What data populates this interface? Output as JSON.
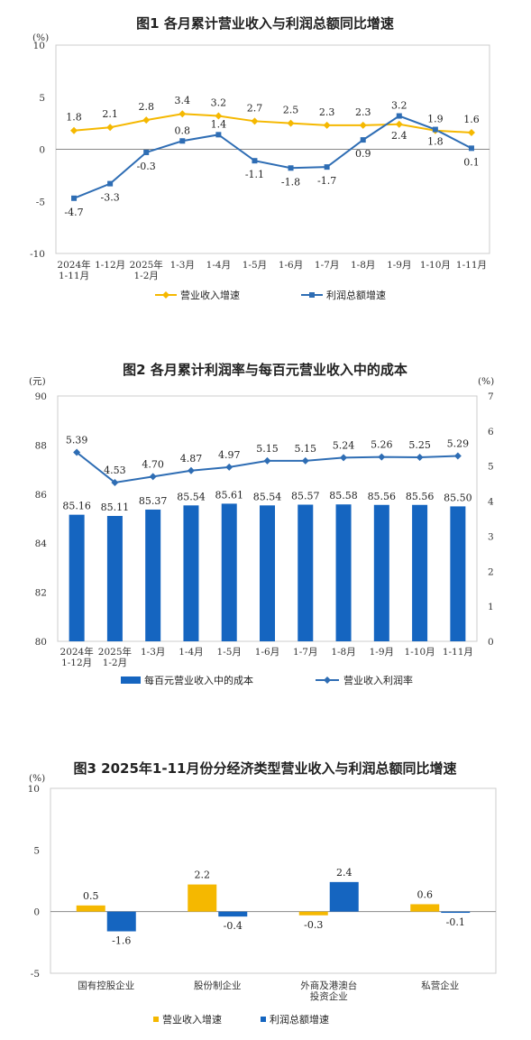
{
  "colors": {
    "gold": "#F5B800",
    "blue": "#2E6DB4",
    "bar_blue": "#1565C0",
    "axis": "#888888",
    "border": "#cccccc"
  },
  "chart_data": [
    {
      "type": "line",
      "title": "图1  各月累计营业收入与利润总额同比增速",
      "yunit": "(%)",
      "ylim": [
        -10,
        10
      ],
      "yticks": [
        "10",
        "5",
        "0",
        "-5",
        "-10"
      ],
      "categories": [
        [
          "2024年",
          "1-11月"
        ],
        [
          "1-12月"
        ],
        [
          "2025年",
          "1-2月"
        ],
        [
          "1-3月"
        ],
        [
          "1-4月"
        ],
        [
          "1-5月"
        ],
        [
          "1-6月"
        ],
        [
          "1-7月"
        ],
        [
          "1-8月"
        ],
        [
          "1-9月"
        ],
        [
          "1-10月"
        ],
        [
          "1-11月"
        ]
      ],
      "series": [
        {
          "name": "营业收入增速",
          "values": [
            1.8,
            2.1,
            2.8,
            3.4,
            3.2,
            2.7,
            2.5,
            2.3,
            2.3,
            2.4,
            1.8,
            1.6
          ]
        },
        {
          "name": "利润总额增速",
          "values": [
            -4.7,
            -3.3,
            -0.3,
            0.8,
            1.4,
            -1.1,
            -1.8,
            -1.7,
            0.9,
            3.2,
            1.9,
            0.1
          ]
        }
      ],
      "labels": {
        "revenue": [
          "1.8",
          "2.1",
          "2.8",
          "3.4",
          "3.2",
          "2.7",
          "2.5",
          "2.3",
          "2.3",
          "2.4",
          "1.8",
          "1.6"
        ],
        "profit": [
          "-4.7",
          "-3.3",
          "-0.3",
          "0.8",
          "1.4",
          "-1.1",
          "-1.8",
          "-1.7",
          "0.9",
          "3.2",
          "1.9",
          "0.1"
        ]
      },
      "legend": [
        "营业收入增速",
        "利润总额增速"
      ]
    },
    {
      "type": "bar",
      "title": "图2  各月累计利润率与每百元营业收入中的成本",
      "yunit_left": "(元)",
      "yunit_right": "(%)",
      "ylim_left": [
        80,
        90
      ],
      "ylim_right": [
        0,
        7
      ],
      "yticks_left": [
        "90",
        "88",
        "86",
        "84",
        "82",
        "80"
      ],
      "yticks_right": [
        "7",
        "6",
        "5",
        "4",
        "3",
        "2",
        "1",
        "0"
      ],
      "categories": [
        [
          "2024年",
          "1-12月"
        ],
        [
          "2025年",
          "1-2月"
        ],
        [
          "1-3月"
        ],
        [
          "1-4月"
        ],
        [
          "1-5月"
        ],
        [
          "1-6月"
        ],
        [
          "1-7月"
        ],
        [
          "1-8月"
        ],
        [
          "1-9月"
        ],
        [
          "1-10月"
        ],
        [
          "1-11月"
        ]
      ],
      "series": [
        {
          "name": "每百元营业收入中的成本",
          "axis": "left",
          "values": [
            85.16,
            85.11,
            85.37,
            85.54,
            85.61,
            85.54,
            85.57,
            85.58,
            85.56,
            85.56,
            85.5
          ]
        },
        {
          "name": "营业收入利润率",
          "axis": "right",
          "values": [
            5.39,
            4.53,
            4.7,
            4.87,
            4.97,
            5.15,
            5.15,
            5.24,
            5.26,
            5.25,
            5.29
          ]
        }
      ],
      "labels": {
        "cost": [
          "85.16",
          "85.11",
          "85.37",
          "85.54",
          "85.61",
          "85.54",
          "85.57",
          "85.58",
          "85.56",
          "85.56",
          "85.50"
        ],
        "margin": [
          "5.39",
          "4.53",
          "4.70",
          "4.87",
          "4.97",
          "5.15",
          "5.15",
          "5.24",
          "5.26",
          "5.25",
          "5.29"
        ]
      },
      "legend": [
        "每百元营业收入中的成本",
        "营业收入利润率"
      ]
    },
    {
      "type": "bar",
      "title": "图3  2025年1-11月份分经济类型营业收入与利润总额同比增速",
      "yunit": "(%)",
      "ylim": [
        -5,
        10
      ],
      "yticks": [
        "10",
        "5",
        "0",
        "-5"
      ],
      "categories": [
        [
          "国有控股企业"
        ],
        [
          "股份制企业"
        ],
        [
          "外商及港澳台",
          "投资企业"
        ],
        [
          "私营企业"
        ]
      ],
      "series": [
        {
          "name": "营业收入增速",
          "values": [
            0.5,
            2.2,
            -0.3,
            0.6
          ]
        },
        {
          "name": "利润总额增速",
          "values": [
            -1.6,
            -0.4,
            2.4,
            -0.1
          ]
        }
      ],
      "labels": {
        "revenue": [
          "0.5",
          "2.2",
          "-0.3",
          "0.6"
        ],
        "profit": [
          "-1.6",
          "-0.4",
          "2.4",
          "-0.1"
        ]
      },
      "legend": [
        "营业收入增速",
        "利润总额增速"
      ]
    }
  ]
}
